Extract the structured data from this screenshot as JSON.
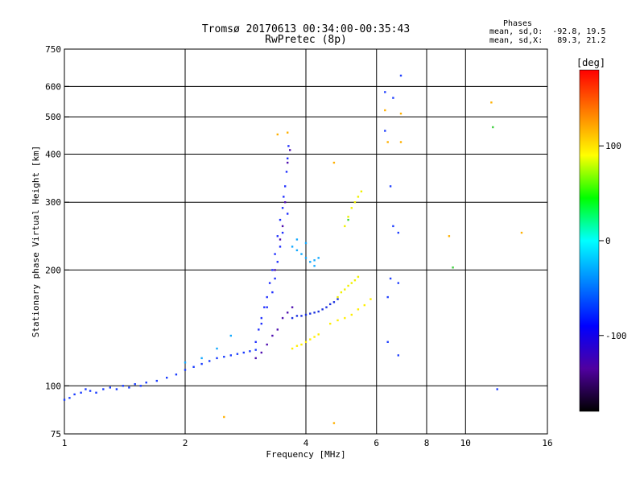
{
  "chart_data": {
    "type": "scatter",
    "title": "Tromsø 20170613 00:34:00-00:35:43",
    "subtitle": "RwPretec (8p)",
    "xlabel": "Frequency [MHz]",
    "ylabel": "Stationary phase Virtual Height [km]",
    "x_scale": "log",
    "y_scale": "log",
    "xlim": [
      1,
      16
    ],
    "ylim": [
      75,
      750
    ],
    "x_ticks": [
      1,
      2,
      4,
      6,
      8,
      10,
      16
    ],
    "y_ticks": [
      75,
      100,
      200,
      300,
      400,
      500,
      600,
      750
    ],
    "x_grid": [
      2,
      4,
      6,
      8,
      10
    ],
    "y_grid": [
      100,
      200,
      300,
      400,
      500,
      600
    ],
    "grid": true,
    "phase_info": {
      "title": "Phases",
      "line1": "mean, sd,O:  -92.8, 19.5",
      "line2": "mean, sd,X:   89.3, 21.2"
    },
    "colorbar": {
      "label": "[deg]",
      "range": [
        -180,
        180
      ],
      "ticks": [
        100,
        0,
        -100
      ],
      "colors": [
        "#ff0000",
        "#ff8000",
        "#ffff00",
        "#00ff00",
        "#00ffff",
        "#0080ff",
        "#0000ff",
        "#5000a0",
        "#000000"
      ]
    },
    "series": [
      {
        "trace": "low-frequency O trace",
        "color": "#1a3cff",
        "points": [
          [
            1.0,
            92
          ],
          [
            1.03,
            93
          ],
          [
            1.06,
            95
          ],
          [
            1.1,
            96
          ],
          [
            1.13,
            98
          ],
          [
            1.16,
            97
          ],
          [
            1.2,
            96
          ],
          [
            1.25,
            98
          ],
          [
            1.3,
            99
          ],
          [
            1.35,
            98
          ],
          [
            1.4,
            100
          ],
          [
            1.45,
            99
          ],
          [
            1.5,
            101
          ],
          [
            1.55,
            100
          ],
          [
            1.6,
            102
          ],
          [
            1.7,
            103
          ],
          [
            1.8,
            105
          ],
          [
            1.9,
            107
          ],
          [
            2.0,
            110
          ],
          [
            2.1,
            112
          ],
          [
            2.2,
            114
          ],
          [
            2.3,
            116
          ],
          [
            2.4,
            118
          ],
          [
            2.5,
            119
          ],
          [
            2.6,
            120
          ],
          [
            2.7,
            121
          ],
          [
            2.8,
            122
          ],
          [
            2.9,
            123
          ],
          [
            3.0,
            124
          ]
        ]
      },
      {
        "trace": "main O column",
        "color": "#2030ff",
        "points": [
          [
            3.0,
            130
          ],
          [
            3.05,
            140
          ],
          [
            3.1,
            150
          ],
          [
            3.15,
            160
          ],
          [
            3.2,
            170
          ],
          [
            3.25,
            185
          ],
          [
            3.3,
            200
          ],
          [
            3.35,
            220
          ],
          [
            3.4,
            245
          ],
          [
            3.45,
            270
          ],
          [
            3.5,
            290
          ],
          [
            3.52,
            310
          ],
          [
            3.55,
            330
          ],
          [
            3.58,
            360
          ],
          [
            3.6,
            390
          ],
          [
            3.62,
            420
          ],
          [
            3.5,
            250
          ],
          [
            3.45,
            230
          ],
          [
            3.4,
            210
          ],
          [
            3.35,
            190
          ],
          [
            3.3,
            175
          ],
          [
            3.2,
            160
          ],
          [
            3.1,
            145
          ],
          [
            3.6,
            280
          ]
        ]
      },
      {
        "trace": "purple inner band",
        "color": "#5010b0",
        "points": [
          [
            3.0,
            118
          ],
          [
            3.1,
            122
          ],
          [
            3.2,
            128
          ],
          [
            3.3,
            135
          ],
          [
            3.4,
            140
          ],
          [
            3.5,
            150
          ],
          [
            3.6,
            155
          ],
          [
            3.7,
            160
          ],
          [
            3.35,
            200
          ],
          [
            3.45,
            240
          ],
          [
            3.5,
            260
          ],
          [
            3.55,
            300
          ],
          [
            3.6,
            380
          ],
          [
            3.65,
            410
          ]
        ]
      },
      {
        "trace": "F1 dark-blue trace",
        "color": "#1a30e0",
        "points": [
          [
            3.7,
            150
          ],
          [
            3.8,
            152
          ],
          [
            3.9,
            152
          ],
          [
            4.0,
            153
          ],
          [
            4.1,
            154
          ],
          [
            4.2,
            155
          ],
          [
            4.3,
            156
          ],
          [
            4.4,
            158
          ],
          [
            4.5,
            160
          ],
          [
            4.6,
            163
          ],
          [
            4.7,
            165
          ],
          [
            4.8,
            168
          ]
        ]
      },
      {
        "trace": "cyan upper band",
        "color": "#10a8ff",
        "points": [
          [
            3.7,
            230
          ],
          [
            3.8,
            225
          ],
          [
            3.9,
            220
          ],
          [
            4.0,
            215
          ],
          [
            4.1,
            210
          ],
          [
            4.2,
            212
          ],
          [
            4.3,
            215
          ],
          [
            3.8,
            240
          ],
          [
            4.0,
            235
          ],
          [
            4.2,
            205
          ],
          [
            2.6,
            135
          ],
          [
            2.4,
            125
          ],
          [
            2.2,
            118
          ],
          [
            2.0,
            115
          ]
        ]
      },
      {
        "trace": "yellow X trace lower",
        "color": "#ffee00",
        "points": [
          [
            3.7,
            125
          ],
          [
            3.8,
            127
          ],
          [
            3.9,
            128
          ],
          [
            4.0,
            130
          ],
          [
            4.1,
            132
          ],
          [
            4.2,
            134
          ],
          [
            4.3,
            136
          ],
          [
            4.6,
            145
          ],
          [
            4.8,
            148
          ],
          [
            5.0,
            150
          ],
          [
            5.2,
            153
          ],
          [
            5.4,
            158
          ],
          [
            5.6,
            162
          ],
          [
            5.8,
            168
          ]
        ]
      },
      {
        "trace": "yellow X trace upper",
        "color": "#f0f000",
        "points": [
          [
            4.8,
            170
          ],
          [
            4.9,
            175
          ],
          [
            5.0,
            178
          ],
          [
            5.1,
            182
          ],
          [
            5.2,
            185
          ],
          [
            5.3,
            188
          ],
          [
            5.4,
            192
          ],
          [
            5.0,
            260
          ],
          [
            5.1,
            275
          ],
          [
            5.2,
            290
          ],
          [
            5.3,
            300
          ],
          [
            5.4,
            310
          ],
          [
            5.5,
            320
          ]
        ]
      },
      {
        "trace": "high-frequency scatter",
        "color": "#2040ff",
        "points": [
          [
            6.3,
            580
          ],
          [
            6.3,
            460
          ],
          [
            6.6,
            560
          ],
          [
            6.5,
            330
          ],
          [
            6.6,
            260
          ],
          [
            6.8,
            250
          ],
          [
            6.5,
            190
          ],
          [
            6.8,
            185
          ],
          [
            6.4,
            170
          ],
          [
            6.4,
            130
          ],
          [
            6.8,
            120
          ],
          [
            6.9,
            640
          ],
          [
            12.0,
            98
          ]
        ]
      },
      {
        "trace": "orange-yellow scatter",
        "color": "#ffb000",
        "points": [
          [
            6.3,
            520
          ],
          [
            6.4,
            430
          ],
          [
            6.9,
            430
          ],
          [
            6.9,
            510
          ],
          [
            3.4,
            450
          ],
          [
            3.6,
            455
          ],
          [
            4.7,
            380
          ],
          [
            9.1,
            245
          ],
          [
            11.6,
            545
          ],
          [
            13.8,
            250
          ],
          [
            4.7,
            80
          ],
          [
            2.5,
            83
          ]
        ]
      },
      {
        "trace": "green scatter",
        "color": "#40d040",
        "points": [
          [
            11.7,
            470
          ],
          [
            9.3,
            203
          ],
          [
            5.1,
            270
          ]
        ]
      }
    ]
  }
}
